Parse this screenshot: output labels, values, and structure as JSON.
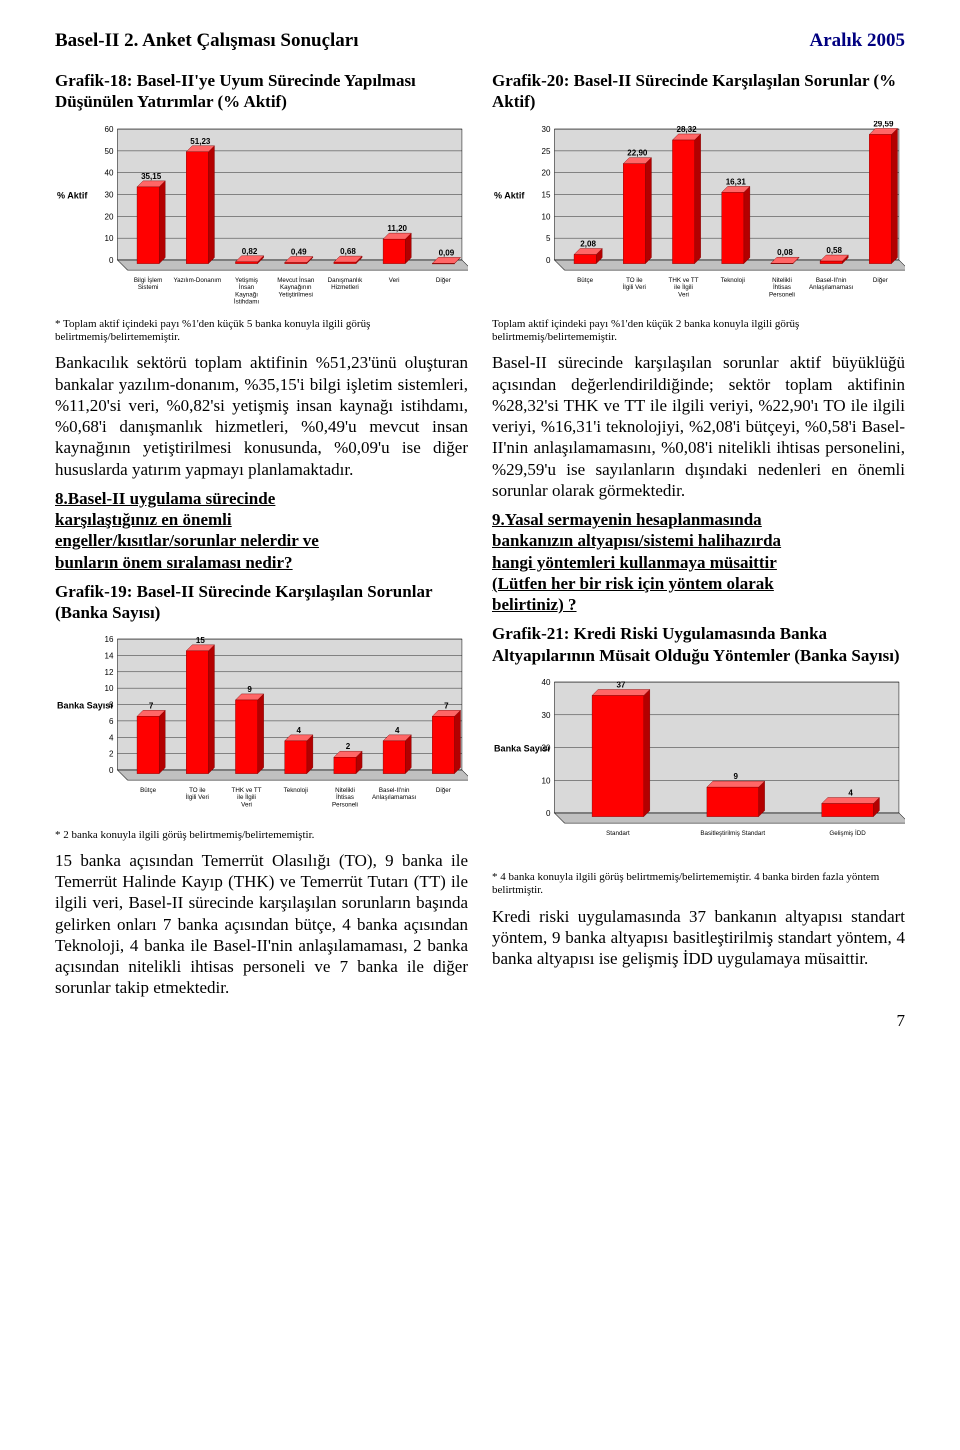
{
  "header": {
    "left": "Basel-II 2. Anket Çalışması Sonuçları",
    "right": "Aralık 2005"
  },
  "page_number": "7",
  "chart18": {
    "title": "Grafik-18: Basel-II'ye Uyum Sürecinde Yapılması Düşünülen Yatırımlar (% Aktif)",
    "type": "bar",
    "y_label": "% Aktif",
    "ylim": [
      0,
      60
    ],
    "ytick_step": 10,
    "categories": [
      "Bilgi İşlem Sistemi",
      "Yazılım-Donanım",
      "Yetişmiş İnsan Kaynağı İstihdamı",
      "Mevcut İnsan Kaynağının Yetiştirilmesi",
      "Danışmanlık Hizmetleri",
      "Veri",
      "Diğer"
    ],
    "values": [
      35.15,
      51.23,
      0.82,
      0.49,
      0.68,
      11.2,
      0.09
    ],
    "value_labels": [
      "35,15",
      "51,23",
      "0,82",
      "0,49",
      "0,68",
      "11,20",
      "0,09"
    ],
    "bar_front": "#ff0000",
    "bar_side": "#b30000",
    "bar_top": "#ff6666",
    "plot_bg": "#c0c0c0",
    "wall_bg": "#d9d9d9",
    "footnote": "* Toplam aktif içindeki payı %1'den küçük 5 banka konuyla ilgili görüş belirtmemiş/belirtememiştir."
  },
  "chart20": {
    "title": "Grafik-20: Basel-II Sürecinde Karşılaşılan Sorunlar (% Aktif)",
    "type": "bar",
    "y_label": "% Aktif",
    "ylim": [
      0,
      30
    ],
    "ytick_step": 5,
    "categories": [
      "Bütçe",
      "TO ile İlgili Veri",
      "THK ve TT ile İlgili Veri",
      "Teknoloji",
      "Nitelikli İhtisas Personeli",
      "Basel-II'nin Anlaşılamaması",
      "Diğer"
    ],
    "values": [
      2.08,
      22.9,
      28.32,
      16.31,
      0.08,
      0.58,
      29.59
    ],
    "value_labels": [
      "2,08",
      "22,90",
      "28,32",
      "16,31",
      "0,08",
      "0,58",
      "29,59"
    ],
    "bar_front": "#ff0000",
    "bar_side": "#b30000",
    "bar_top": "#ff6666",
    "plot_bg": "#c0c0c0",
    "wall_bg": "#d9d9d9",
    "footnote": "Toplam aktif içindeki payı %1'den küçük 2 banka konuyla ilgili görüş belirtmemiş/belirtememiştir."
  },
  "chart19": {
    "title": "Grafik-19: Basel-II Sürecinde Karşılaşılan Sorunlar (Banka Sayısı)",
    "type": "bar",
    "y_label": "Banka Sayısı",
    "ylim": [
      0,
      16
    ],
    "ytick_step": 2,
    "categories": [
      "Bütçe",
      "TO ile İlgili Veri",
      "THK ve TT ile İlgili Veri",
      "Teknoloji",
      "Nitelikli İhtisas Personeli",
      "Basel-II'nin Anlaşılamaması",
      "Diğer"
    ],
    "values": [
      7,
      15,
      9,
      4,
      2,
      4,
      7
    ],
    "value_labels": [
      "7",
      "15",
      "9",
      "4",
      "2",
      "4",
      "7"
    ],
    "bar_front": "#ff0000",
    "bar_side": "#b30000",
    "bar_top": "#ff6666",
    "plot_bg": "#c0c0c0",
    "wall_bg": "#d9d9d9",
    "footnote": "* 2 banka konuyla ilgili görüş belirtmemiş/belirtememiştir."
  },
  "chart21": {
    "title": "Grafik-21: Kredi Riski Uygulamasında Banka Altyapılarının Müsait Olduğu Yöntemler (Banka Sayısı)",
    "type": "bar",
    "y_label": "Banka Sayısı",
    "ylim": [
      0,
      40
    ],
    "ytick_step": 10,
    "categories": [
      "Standart",
      "Basitleştirilmiş Standart",
      "Gelişmiş İDD"
    ],
    "values": [
      37,
      9,
      4
    ],
    "value_labels": [
      "37",
      "9",
      "4"
    ],
    "bar_front": "#ff0000",
    "bar_side": "#b30000",
    "bar_top": "#ff6666",
    "plot_bg": "#c0c0c0",
    "wall_bg": "#d9d9d9",
    "footnote": "* 4 banka konuyla ilgili görüş belirtmemiş/belirtememiştir. 4 banka birden fazla yöntem belirtmiştir."
  },
  "left_body": {
    "p1": "Bankacılık sektörü toplam aktifinin %51,23'ünü oluşturan bankalar yazılım-donanım, %35,15'i bilgi işletim sistemleri, %11,20'si veri, %0,82'si yetişmiş insan kaynağı istihdamı, %0,68'i danışmanlık hizmetleri, %0,49'u mevcut insan kaynağının yetiştirilmesi konusunda, %0,09'u ise diğer hususlarda yatırım yapmayı planlamaktadır.",
    "q8_line1": "8.Basel-II uygulama sürecinde",
    "q8_line2": "karşılaştığınız en önemli",
    "q8_line3": "engeller/kısıtlar/sorunlar nelerdir ve",
    "q8_line4": "bunların önem sıralaması nedir?",
    "p2": "15 banka açısından Temerrüt Olasılığı (TO), 9 banka ile Temerrüt Halinde Kayıp (THK) ve Temerrüt Tutarı (TT) ile ilgili veri, Basel-II sürecinde karşılaşılan sorunların başında gelirken onları 7 banka açısından bütçe, 4 banka açısından Teknoloji, 4 banka ile Basel-II'nin anlaşılamaması, 2 banka açısından nitelikli ihtisas personeli ve 7 banka ile diğer sorunlar takip etmektedir."
  },
  "right_body": {
    "p1": "Basel-II sürecinde karşılaşılan sorunlar aktif büyüklüğü açısından değerlendirildiğinde; sektör toplam aktifinin %28,32'si THK ve TT ile ilgili veriyi, %22,90'ı TO ile ilgili veriyi, %16,31'i teknolojiyi, %2,08'i bütçeyi, %0,58'i Basel-II'nin anlaşılamamasını, %0,08'i nitelikli ihtisas personelini, %29,59'u ise sayılanların dışındaki nedenleri en önemli sorunlar olarak görmektedir.",
    "q9_line1": "9.Yasal sermayenin hesaplanmasında",
    "q9_line2": "bankanızın altyapısı/sistemi halihazırda",
    "q9_line3": "hangi yöntemleri kullanmaya müsaittir",
    "q9_line4": "(Lütfen her bir risk için yöntem olarak",
    "q9_line5": "belirtiniz) ?",
    "p2": "Kredi riski uygulamasında 37 bankanın altyapısı standart yöntem, 9 banka altyapısı basitleştirilmiş standart yöntem, 4 banka altyapısı ise gelişmiş İDD uygulamaya müsaittir."
  }
}
